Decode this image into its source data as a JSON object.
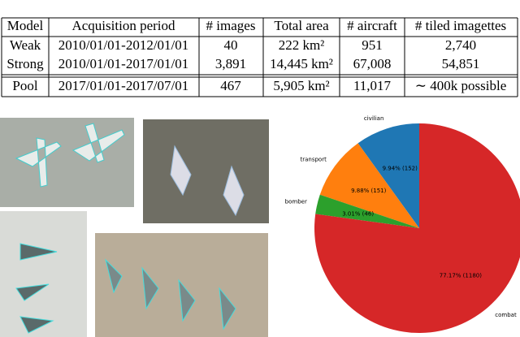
{
  "table": {
    "header": [
      "Model",
      "Acquisition period",
      "# images",
      "Total area",
      "# aircraft",
      "# tiled imagettes"
    ],
    "rows": [
      [
        "Weak",
        "2010/01/01-2012/01/01",
        "40",
        "222 km²",
        "951",
        "2,740"
      ],
      [
        "Strong",
        "2010/01/01-2017/01/01",
        "3,891",
        "14,445 km²",
        "67,008",
        "54,851"
      ],
      [
        "Pool",
        "2017/01/01-2017/07/01",
        "467",
        "5,905 km²",
        "11,017",
        "∼ 400k possible"
      ]
    ]
  },
  "chart_data": {
    "type": "pie",
    "categories": [
      "civilian",
      "transport",
      "bomber",
      "combat"
    ],
    "values": [
      9.94,
      9.88,
      3.01,
      77.17
    ],
    "value_labels": [
      "9.94% (152)",
      "9.88% (151)",
      "3.01% (46)",
      "77.17% (1180)"
    ],
    "colors": [
      "#1f77b4",
      "#ff7f0e",
      "#2ca02c",
      "#d62728"
    ]
  }
}
